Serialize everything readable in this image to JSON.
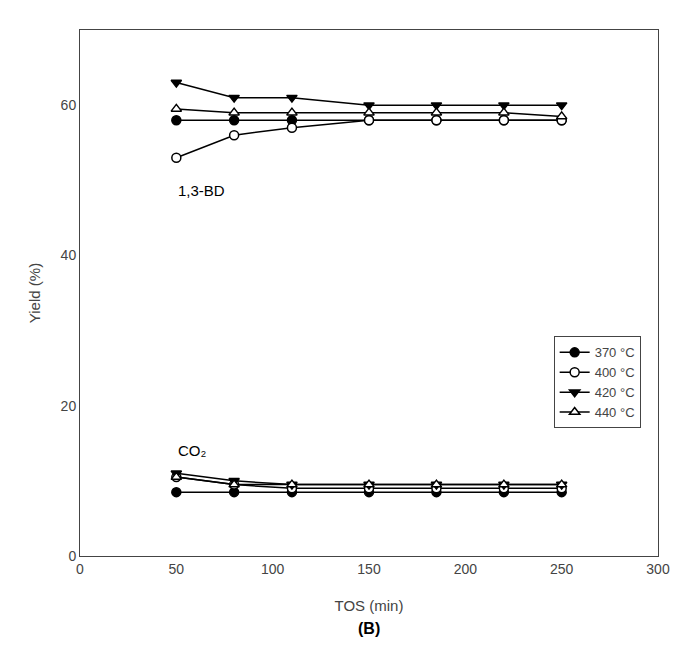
{
  "chart_data": {
    "type": "line",
    "x_label": "TOS (min)",
    "y_label": "Yield (%)",
    "x": [
      50,
      80,
      110,
      150,
      185,
      220,
      250
    ],
    "series": [
      {
        "name": "370 °C",
        "color": "#000000",
        "marker": "circle",
        "values": [
          58,
          58,
          58,
          58,
          58,
          58,
          58
        ]
      },
      {
        "color": "#000000",
        "marker": "circle",
        "values": [
          8.5,
          8.5,
          8.5,
          8.5,
          8.5,
          8.5,
          8.5
        ]
      },
      {
        "name": "400 °C",
        "color": "#000000",
        "marker": "circle-open",
        "values": [
          53,
          56,
          57,
          58,
          58,
          58,
          58
        ]
      },
      {
        "color": "#000000",
        "marker": "circle-open",
        "values": [
          10.5,
          9.5,
          9.0,
          9.0,
          9.0,
          9.0,
          9.0
        ]
      },
      {
        "name": "420 °C",
        "color": "#000000",
        "marker": "triangle-down",
        "values": [
          63,
          61,
          61,
          60,
          60,
          60,
          60
        ]
      },
      {
        "color": "#000000",
        "marker": "triangle-down",
        "values": [
          11.0,
          10.0,
          9.5,
          9.5,
          9.5,
          9.5,
          9.5
        ]
      },
      {
        "name": "440 °C",
        "color": "#000000",
        "marker": "triangle-up-open",
        "values": [
          59.5,
          59,
          59,
          59,
          59,
          59,
          58.5
        ]
      },
      {
        "color": "#000000",
        "marker": "triangle-up-open",
        "values": [
          10.5,
          9.5,
          9.5,
          9.5,
          9.5,
          9.5,
          9.5
        ]
      }
    ],
    "annotations": [
      {
        "text": "1,3-BD",
        "x": 50,
        "y": 50
      },
      {
        "text": "CO₂",
        "x": 50,
        "y": 15.5
      },
      {
        "text": "(B)"
      }
    ],
    "xlim": [
      0,
      300
    ],
    "ylim": [
      0,
      70
    ],
    "xticks": [
      0,
      50,
      100,
      150,
      200,
      250,
      300
    ],
    "yticks": [
      0,
      20,
      40,
      60
    ],
    "grid": false,
    "legend": "center right"
  }
}
